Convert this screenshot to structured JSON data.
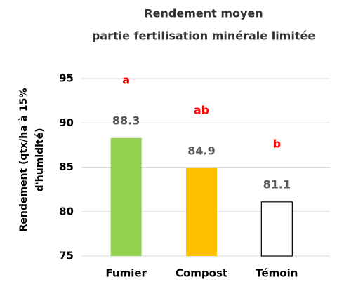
{
  "chart_data": {
    "type": "bar",
    "title": [
      "Rendement moyen",
      "partie fertilisation minérale limitée"
    ],
    "y_label": [
      "Rendement (qtx/ha à 15%",
      "d'humidité)"
    ],
    "categories": [
      "Fumier",
      "Compost",
      "Témoin"
    ],
    "values": [
      88.3,
      84.9,
      81.1
    ],
    "colors": [
      "#92d050",
      "#ffc000",
      "#ffffff"
    ],
    "significance_letters": [
      "a",
      "ab",
      "b"
    ],
    "ylim": [
      75,
      95
    ],
    "yticks": [
      75,
      80,
      85,
      90,
      95
    ],
    "grid": true
  }
}
